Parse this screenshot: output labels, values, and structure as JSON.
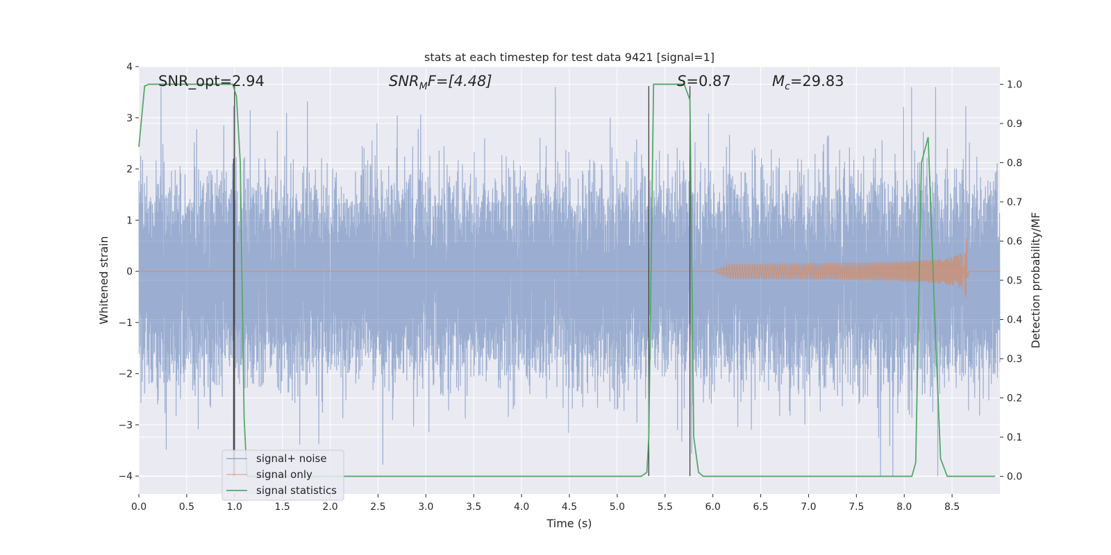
{
  "chart_data": {
    "type": "line",
    "title": "stats at each timestep for test data 9421 [signal=1]",
    "xlabel": "Time (s)",
    "ylabel_left": "Whitened strain",
    "ylabel_right": "Detection probability/MF",
    "xlim": [
      0.0,
      9.0
    ],
    "ylim_left": [
      -4.35,
      4.0
    ],
    "ylim_right": [
      -0.045,
      1.045
    ],
    "x_ticks": [
      "0.0",
      "0.5",
      "1.0",
      "1.5",
      "2.0",
      "2.5",
      "3.0",
      "3.5",
      "4.0",
      "4.5",
      "5.0",
      "5.5",
      "6.0",
      "6.5",
      "7.0",
      "7.5",
      "8.0",
      "8.5"
    ],
    "y_ticks_left": [
      "−4",
      "−3",
      "−2",
      "−1",
      "0",
      "1",
      "2",
      "3",
      "4"
    ],
    "y_ticks_right": [
      "0.0",
      "0.1",
      "0.2",
      "0.3",
      "0.4",
      "0.5",
      "0.6",
      "0.7",
      "0.8",
      "0.9",
      "1.0"
    ],
    "grid": true,
    "legend_position": "lower-left",
    "colors": {
      "background": "#EAEAF2",
      "signal_noise": "#4C72B0",
      "signal_only": "#DD8452",
      "signal_statistics": "#55A868",
      "vlines": "#404040"
    },
    "annotations": {
      "snr_opt": "SNR_opt=2.94",
      "snr_mf_base": "SNR",
      "snr_mf_sub": "M",
      "snr_mf_rest": "F=[4.48]",
      "s_label": "S",
      "s_value": "=0.87",
      "mc_base": "M",
      "mc_sub": "c",
      "mc_value": "=29.83"
    },
    "series": [
      {
        "name": "signal+ noise",
        "kind": "noise",
        "t_range": [
          0.0,
          9.0
        ],
        "typical_envelope": [
          -1.7,
          1.35
        ],
        "peak_range": [
          -4.0,
          3.6
        ],
        "note_values": "dense whitened strain noise, samples from -4 to 3.6"
      },
      {
        "name": "signal only",
        "kind": "chirp",
        "t_start": 6.0,
        "t_merger": 8.66,
        "peak_amplitude": 0.72
      },
      {
        "name": "signal statistics",
        "kind": "probability",
        "x": [
          0.0,
          0.06,
          0.1,
          0.25,
          0.5,
          0.75,
          0.98,
          1.02,
          1.06,
          1.1,
          1.13,
          1.25,
          2.0,
          3.0,
          4.0,
          5.0,
          5.25,
          5.31,
          5.33,
          5.38,
          5.5,
          5.65,
          5.7,
          5.76,
          5.8,
          5.85,
          5.9,
          6.5,
          7.0,
          7.5,
          8.0,
          8.08,
          8.12,
          8.18,
          8.25,
          8.32,
          8.38,
          8.45,
          8.55,
          8.7,
          8.95
        ],
        "y": [
          0.84,
          0.995,
          1.0,
          1.0,
          1.0,
          1.0,
          1.0,
          0.97,
          0.8,
          0.15,
          0.0,
          0.0,
          0.0,
          0.0,
          0.0,
          0.0,
          0.0,
          0.01,
          0.1,
          1.0,
          1.0,
          1.0,
          1.0,
          0.96,
          0.1,
          0.01,
          0.0,
          0.0,
          0.0,
          0.0,
          0.0,
          0.0,
          0.035,
          0.8,
          0.865,
          0.4,
          0.045,
          0.0,
          0.0,
          0.0,
          0.0
        ]
      }
    ],
    "vertical_lines": [
      {
        "x": 0.99,
        "y_bottom": -4.0,
        "y_top": 2.2
      },
      {
        "x": 1.0,
        "y_bottom": -4.0,
        "y_top": 3.62
      },
      {
        "x": 5.33,
        "y_bottom": -4.0,
        "y_top": 3.62
      },
      {
        "x": 5.76,
        "y_bottom": -4.0,
        "y_top": 3.62
      }
    ]
  }
}
